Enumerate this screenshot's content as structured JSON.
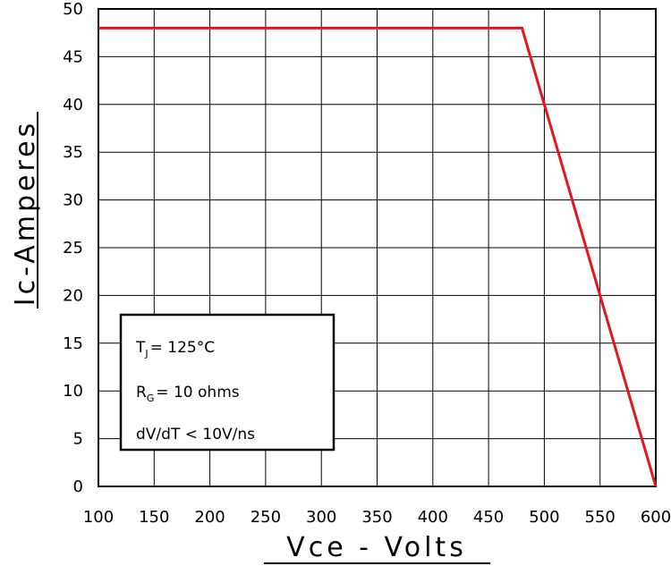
{
  "chart_data": {
    "type": "line",
    "xlabel": "Vce - Volts",
    "ylabel": "Ic-Amperes",
    "xlim": [
      100,
      600
    ],
    "ylim": [
      0,
      50
    ],
    "x_ticks": [
      100,
      150,
      200,
      250,
      300,
      350,
      400,
      450,
      500,
      550,
      600
    ],
    "y_ticks": [
      0,
      5,
      10,
      15,
      20,
      25,
      30,
      35,
      40,
      45,
      50
    ],
    "grid": true,
    "series": [
      {
        "color": "#e8141b",
        "x": [
          100,
          480,
          600
        ],
        "y": [
          48,
          48,
          0
        ]
      }
    ],
    "annotation": {
      "tj_main": "T",
      "tj_sub": "J",
      "tj_value": "= 125°C",
      "rg_main": "R",
      "rg_sub": "G",
      "rg_value": "= 10 ohms",
      "dvdt": "dV/dT < 10V/ns"
    }
  }
}
